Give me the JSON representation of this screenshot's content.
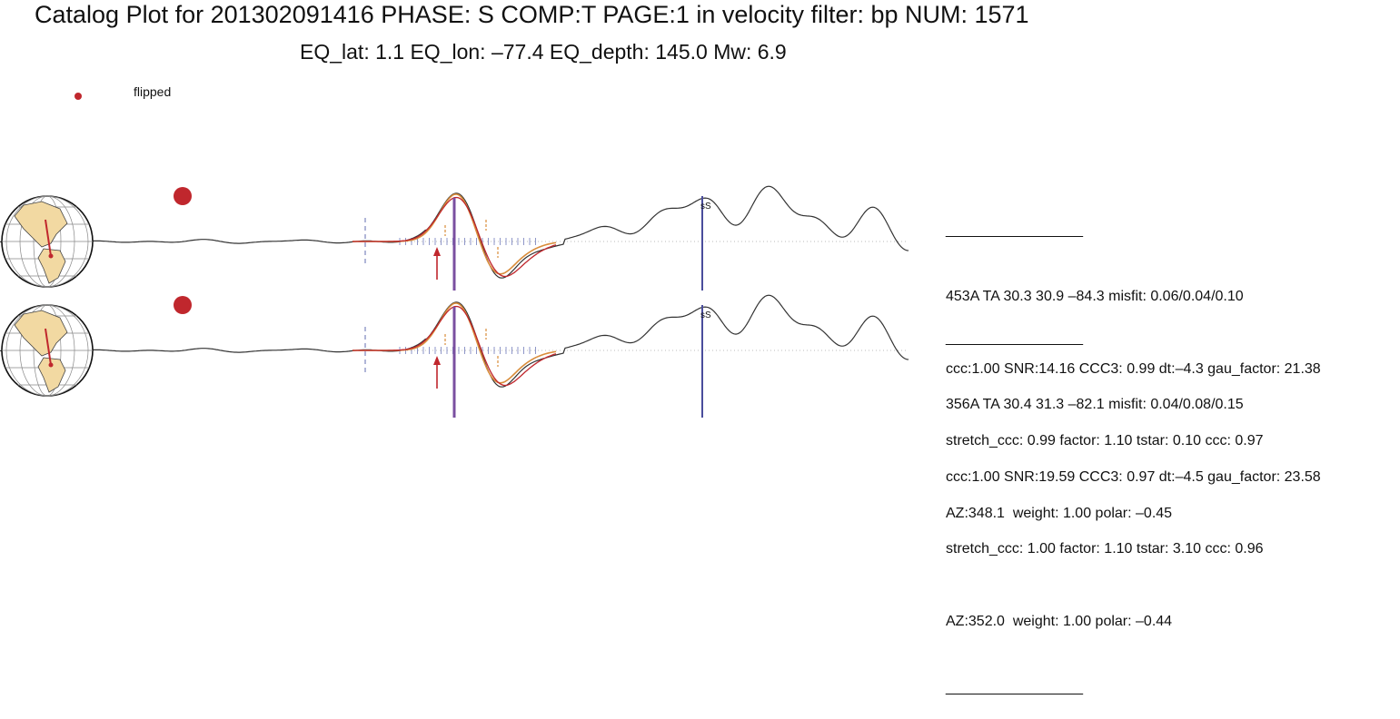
{
  "title": "Catalog Plot for 201302091416 PHASE: S COMP:T PAGE:1 in velocity filter: bp NUM: 1571",
  "subtitle": "EQ_lat: 1.1 EQ_lon: –77.4 EQ_depth: 145.0 Mw: 6.9",
  "legend": {
    "label": "flipped",
    "color": "#c0272d"
  },
  "separator": "___________________",
  "colors": {
    "trace": "#333333",
    "synthetic": "#d98c3a",
    "fit": "#c0272d",
    "phase_line": "#7a4fa0",
    "ss_line": "#4a4d9c",
    "window": "#8e96c8",
    "marker": "#c0272d"
  },
  "chart_data": {
    "type": "line",
    "traces": [
      {
        "station": "453A",
        "phase_label": "sS",
        "info_lines": [
          "453A TA 30.3 30.9 –84.3 misfit: 0.06/0.04/0.10",
          "ccc:1.00 SNR:14.16 CCC3: 0.99 dt:–4.3 gau_factor: 21.38",
          "stretch_ccc: 0.99 factor: 1.10 tstar: 0.10 ccc: 0.97",
          "AZ:348.1  weight: 1.00 polar: –0.45"
        ]
      },
      {
        "station": "356A",
        "phase_label": "sS",
        "info_lines": [
          "356A TA 30.4 31.3 –82.1 misfit: 0.04/0.08/0.15",
          "ccc:1.00 SNR:19.59 CCC3: 0.97 dt:–4.5 gau_factor: 23.58",
          "stretch_ccc: 1.00 factor: 1.10 tstar: 3.10 ccc: 0.96",
          "AZ:352.0  weight: 1.00 polar: –0.44"
        ]
      }
    ]
  }
}
